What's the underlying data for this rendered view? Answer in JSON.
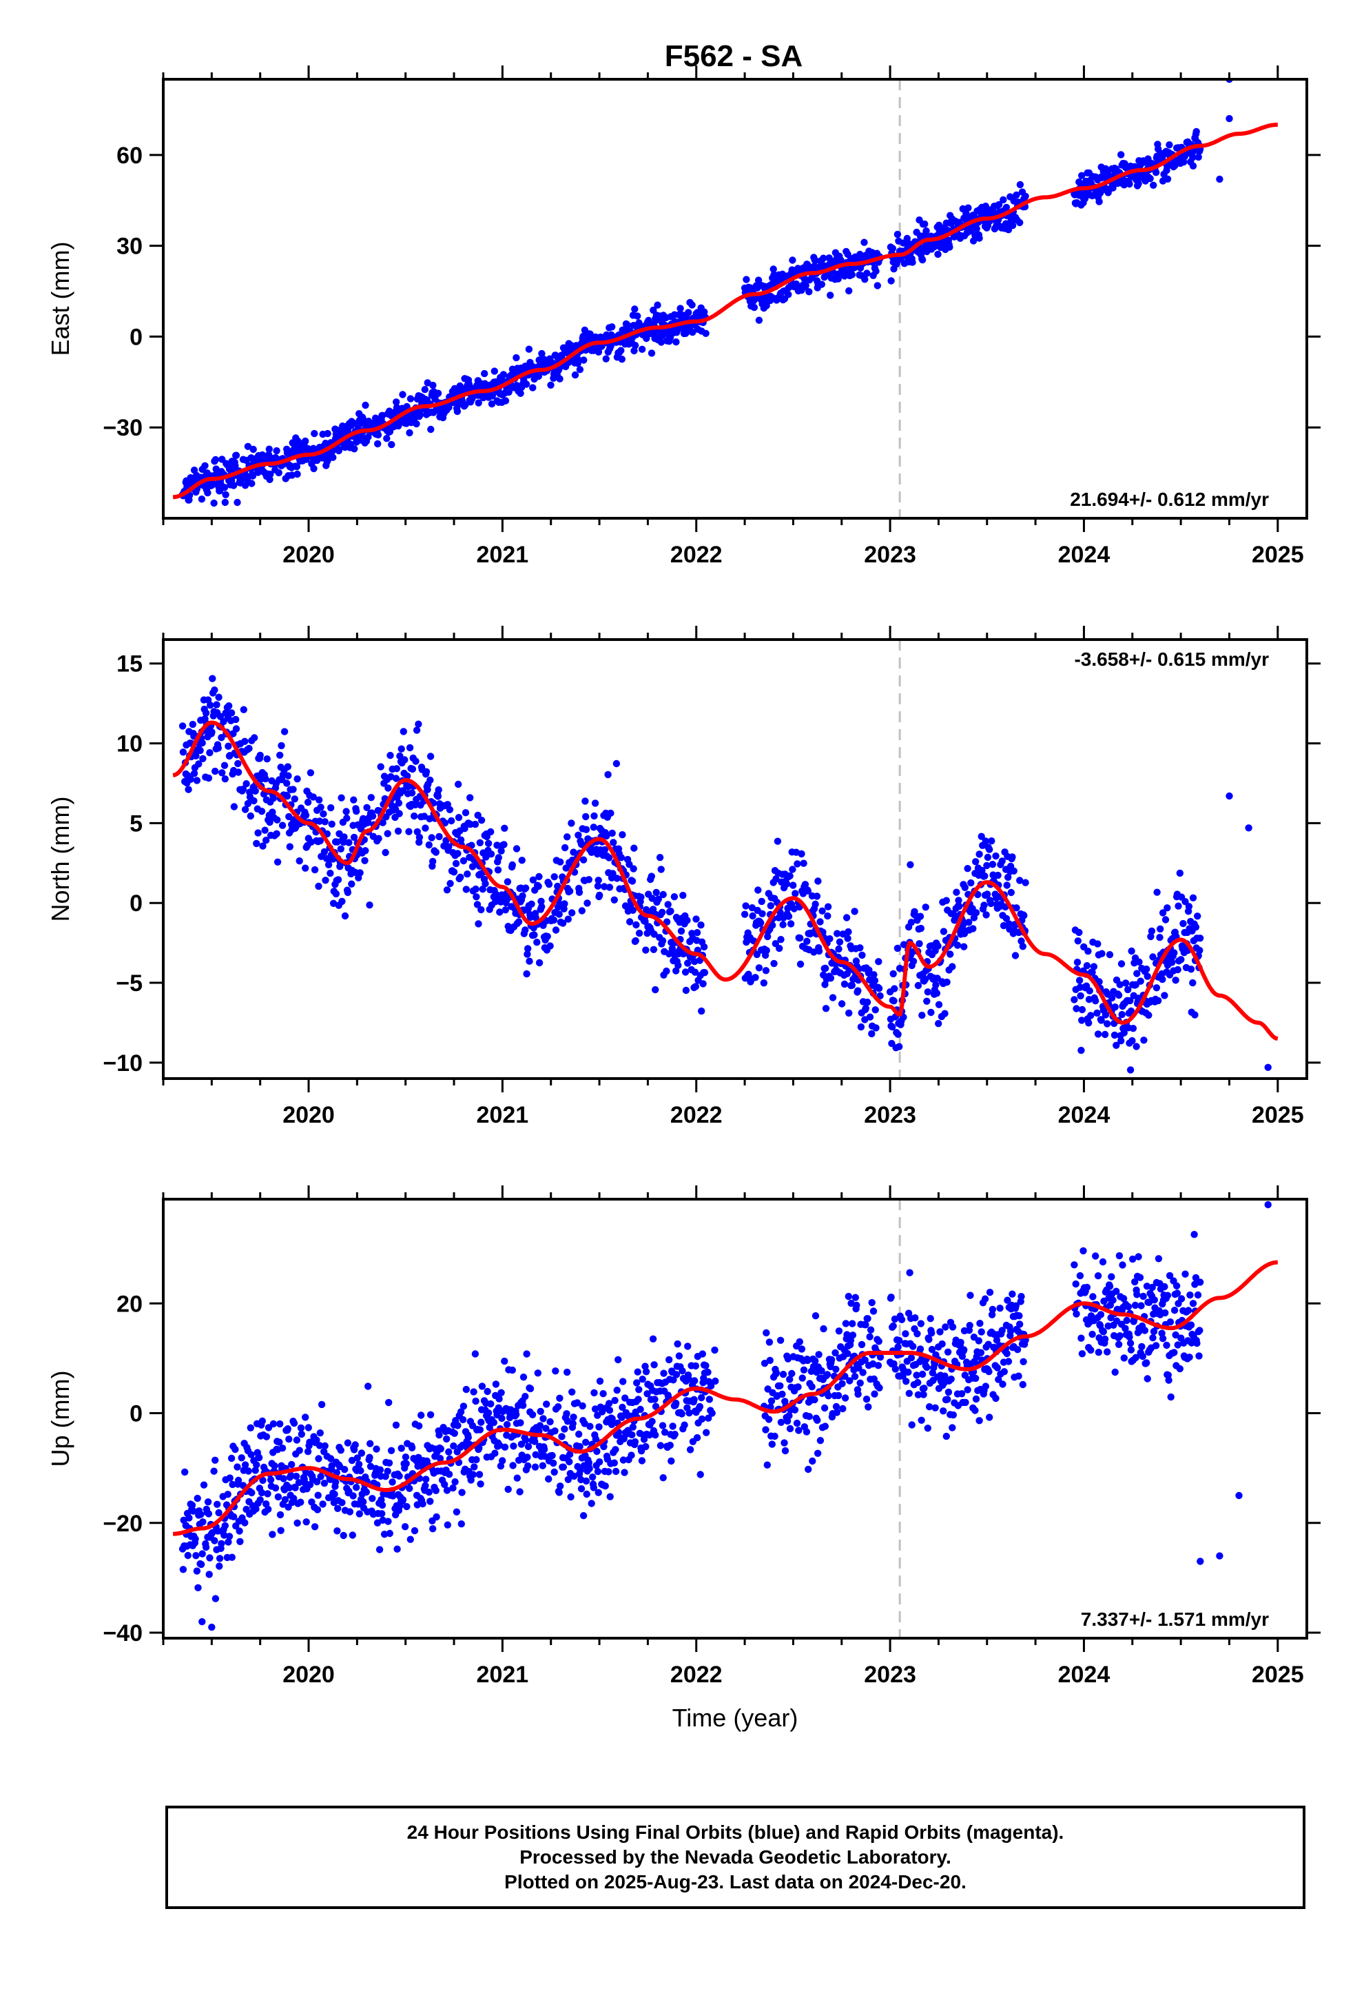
{
  "title": "F562 - SA",
  "colors": {
    "final_orbits": "#0000ff",
    "model_fit": "#ff0000",
    "event_line": "#c0c0c0"
  },
  "chart_data": [
    {
      "type": "scatter",
      "component": "east",
      "ylabel": "East (mm)",
      "xlabel": "",
      "xlim": [
        2019.25,
        2025.15
      ],
      "ylim": [
        -60,
        85
      ],
      "xticks": [
        2020,
        2021,
        2022,
        2023,
        2024,
        2025
      ],
      "yticks": [
        -30,
        0,
        30,
        60
      ],
      "event_line_x": 2023.05,
      "rate_label": "21.694+/- 0.612 mm/yr",
      "rate_position": "bottom-right",
      "grid": false,
      "fit": {
        "x": [
          2019.3,
          2019.5,
          2019.8,
          2020.0,
          2020.3,
          2020.6,
          2020.9,
          2021.2,
          2021.5,
          2021.8,
          2022.0,
          2022.3,
          2022.6,
          2022.8,
          2023.05,
          2023.2,
          2023.5,
          2023.8,
          2024.0,
          2024.3,
          2024.6,
          2024.8,
          2025.0
        ],
        "y": [
          -53,
          -47,
          -42,
          -39,
          -31,
          -23,
          -18,
          -11,
          -2,
          3,
          5,
          14,
          21,
          24,
          27,
          32,
          39,
          46,
          49,
          55,
          63,
          67,
          70
        ]
      },
      "series": [
        {
          "name": "",
          "segments": [
            [
              2019.35,
              2020.2
            ],
            [
              2020.2,
              2022.05
            ],
            [
              2022.25,
              2022.95
            ],
            [
              2023.0,
              2023.7
            ],
            [
              2023.95,
              2024.6
            ]
          ],
          "noise_mm": 2.8,
          "outliers": {
            "x": [
              2024.7,
              2024.75,
              2024.75
            ],
            "y": [
              52,
              72,
              85
            ]
          }
        }
      ]
    },
    {
      "type": "scatter",
      "component": "north",
      "ylabel": "North (mm)",
      "xlabel": "",
      "xlim": [
        2019.25,
        2025.15
      ],
      "ylim": [
        -11,
        16.5
      ],
      "xticks": [
        2020,
        2021,
        2022,
        2023,
        2024,
        2025
      ],
      "yticks": [
        -10,
        -5,
        0,
        5,
        10,
        15
      ],
      "event_line_x": 2023.05,
      "rate_label": "-3.658+/- 0.615 mm/yr",
      "rate_position": "top-right",
      "grid": false,
      "fit": {
        "x": [
          2019.3,
          2019.5,
          2019.8,
          2020.0,
          2020.2,
          2020.3,
          2020.5,
          2020.8,
          2021.0,
          2021.15,
          2021.5,
          2021.75,
          2022.0,
          2022.15,
          2022.5,
          2022.75,
          2023.0,
          2023.05,
          2023.1,
          2023.2,
          2023.5,
          2023.8,
          2024.0,
          2024.2,
          2024.5,
          2024.7,
          2024.9,
          2025.0
        ],
        "y": [
          8,
          11.3,
          7,
          5,
          2.5,
          4.5,
          7.7,
          3.5,
          1,
          -1.3,
          4,
          -0.8,
          -3.2,
          -4.8,
          0.3,
          -3.7,
          -6.5,
          -7,
          -2.5,
          -4,
          1.3,
          -3.2,
          -4.5,
          -7.5,
          -2.3,
          -5.8,
          -7.5,
          -8.5
        ]
      },
      "series": [
        {
          "name": "",
          "segments": [
            [
              2019.35,
              2022.05
            ],
            [
              2022.25,
              2022.95
            ],
            [
              2023.0,
              2023.7
            ],
            [
              2023.95,
              2024.6
            ]
          ],
          "noise_mm": 1.6,
          "outliers": {
            "x": [
              2024.75,
              2024.85,
              2024.95
            ],
            "y": [
              6.7,
              4.7,
              -10.3
            ]
          }
        }
      ]
    },
    {
      "type": "scatter",
      "component": "up",
      "ylabel": "Up (mm)",
      "xlabel": "Time (year)",
      "xlim": [
        2019.25,
        2025.15
      ],
      "ylim": [
        -41,
        39
      ],
      "xticks": [
        2020,
        2021,
        2022,
        2023,
        2024,
        2025
      ],
      "yticks": [
        -40,
        -20,
        0,
        20
      ],
      "event_line_x": 2023.05,
      "rate_label": "7.337+/- 1.571 mm/yr",
      "rate_position": "bottom-right",
      "grid": false,
      "fit": {
        "x": [
          2019.3,
          2019.45,
          2019.8,
          2020.0,
          2020.2,
          2020.4,
          2020.7,
          2021.0,
          2021.2,
          2021.4,
          2021.7,
          2022.0,
          2022.2,
          2022.4,
          2022.6,
          2022.9,
          2023.1,
          2023.4,
          2023.7,
          2024.0,
          2024.2,
          2024.45,
          2024.7,
          2025.0
        ],
        "y": [
          -22,
          -21,
          -11,
          -10,
          -12,
          -14,
          -9,
          -3,
          -4,
          -7,
          -1,
          4.5,
          2.5,
          0.3,
          3.5,
          11,
          11,
          8,
          14,
          20,
          18,
          15.5,
          21,
          27.5
        ]
      },
      "series": [
        {
          "name": "",
          "segments": [
            [
              2019.35,
              2022.1
            ],
            [
              2022.35,
              2022.95
            ],
            [
              2023.0,
              2023.7
            ],
            [
              2023.95,
              2024.6
            ]
          ],
          "noise_mm": 5.2,
          "outliers": {
            "x": [
              2019.45,
              2019.5,
              2024.6,
              2024.7,
              2024.8,
              2024.95
            ],
            "y": [
              -38,
              -39,
              -27,
              -26,
              -15,
              38
            ]
          }
        }
      ]
    }
  ],
  "footer": {
    "lines": [
      "24 Hour Positions Using Final Orbits (blue) and Rapid Orbits (magenta).",
      "Processed by the Nevada Geodetic Laboratory.",
      "Plotted on 2025-Aug-23. Last data on 2024-Dec-20."
    ]
  }
}
